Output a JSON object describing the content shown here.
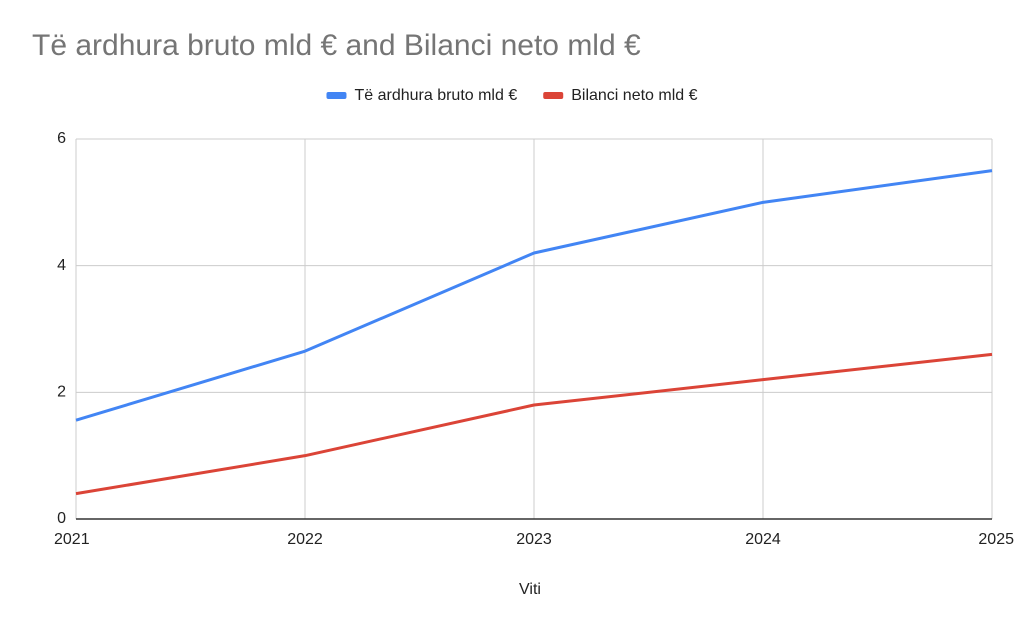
{
  "chart_data": {
    "type": "line",
    "title": "Të ardhura bruto mld € and Bilanci neto mld €",
    "x_label": "Viti",
    "x": [
      2021,
      2022,
      2023,
      2024,
      2025
    ],
    "series": [
      {
        "name": "Të ardhura bruto mld €",
        "color": "#4285f4",
        "values": [
          1.56,
          2.65,
          4.2,
          5.0,
          5.5
        ]
      },
      {
        "name": "Bilanci neto mld €",
        "color": "#db4437",
        "values": [
          0.4,
          1.0,
          1.8,
          2.2,
          2.6
        ]
      }
    ],
    "xlim": [
      2021,
      2025
    ],
    "xticks": [
      2021,
      2022,
      2023,
      2024,
      2025
    ],
    "ylim": [
      0,
      6
    ],
    "yticks": [
      0,
      2,
      4,
      6
    ],
    "grid": true,
    "legend": "top"
  }
}
